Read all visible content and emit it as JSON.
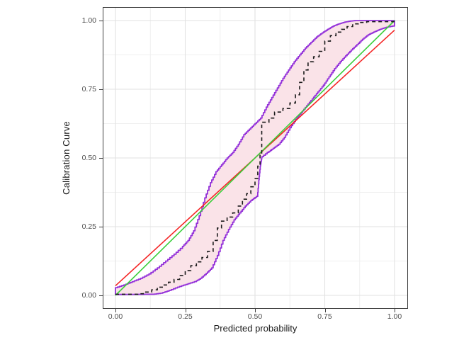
{
  "figure": {
    "background_color": "#ffffff",
    "panel_border_color": "#404040",
    "grid_major_color": "#e2e2e2",
    "grid_minor_color": "#efefef"
  },
  "chart_data": {
    "type": "line",
    "title": "",
    "xlabel": "Predicted probability",
    "ylabel": "Calibration Curve",
    "xlim": [
      0,
      1
    ],
    "ylim": [
      0,
      1
    ],
    "grid": "on",
    "legend": "none",
    "x_ticks": {
      "values": [
        0,
        0.25,
        0.5,
        0.75,
        1
      ],
      "labels": [
        "0.00",
        "0.25",
        "0.50",
        "0.75",
        "1.00"
      ]
    },
    "y_ticks": {
      "values": [
        0,
        0.25,
        0.5,
        0.75,
        1
      ],
      "labels": [
        "0.00",
        "0.25",
        "0.50",
        "0.75",
        "1.00"
      ]
    },
    "minor_ticks": [
      0.125,
      0.375,
      0.625,
      0.875
    ],
    "series": [
      {
        "name": "confidence-band",
        "type": "band",
        "stroke": "#9330d9",
        "fill": "#fae3e8",
        "upper": [
          [
            0,
            0.028
          ],
          [
            0.03,
            0.038
          ],
          [
            0.06,
            0.05
          ],
          [
            0.09,
            0.062
          ],
          [
            0.12,
            0.078
          ],
          [
            0.15,
            0.1
          ],
          [
            0.18,
            0.125
          ],
          [
            0.21,
            0.15
          ],
          [
            0.24,
            0.178
          ],
          [
            0.26,
            0.2
          ],
          [
            0.28,
            0.235
          ],
          [
            0.3,
            0.29
          ],
          [
            0.32,
            0.355
          ],
          [
            0.34,
            0.41
          ],
          [
            0.36,
            0.45
          ],
          [
            0.38,
            0.475
          ],
          [
            0.4,
            0.5
          ],
          [
            0.42,
            0.52
          ],
          [
            0.44,
            0.55
          ],
          [
            0.46,
            0.585
          ],
          [
            0.48,
            0.605
          ],
          [
            0.5,
            0.625
          ],
          [
            0.52,
            0.645
          ],
          [
            0.54,
            0.685
          ],
          [
            0.56,
            0.72
          ],
          [
            0.58,
            0.755
          ],
          [
            0.6,
            0.79
          ],
          [
            0.62,
            0.82
          ],
          [
            0.64,
            0.85
          ],
          [
            0.66,
            0.875
          ],
          [
            0.68,
            0.9
          ],
          [
            0.7,
            0.92
          ],
          [
            0.72,
            0.94
          ],
          [
            0.74,
            0.955
          ],
          [
            0.76,
            0.968
          ],
          [
            0.78,
            0.98
          ],
          [
            0.8,
            0.988
          ],
          [
            0.82,
            0.994
          ],
          [
            0.84,
            0.998
          ],
          [
            0.86,
            1
          ],
          [
            1,
            1
          ]
        ],
        "lower": [
          [
            0,
            0.003
          ],
          [
            0.14,
            0.004
          ],
          [
            0.17,
            0.008
          ],
          [
            0.2,
            0.018
          ],
          [
            0.23,
            0.03
          ],
          [
            0.26,
            0.04
          ],
          [
            0.29,
            0.05
          ],
          [
            0.31,
            0.062
          ],
          [
            0.33,
            0.08
          ],
          [
            0.35,
            0.1
          ],
          [
            0.37,
            0.145
          ],
          [
            0.39,
            0.2
          ],
          [
            0.41,
            0.24
          ],
          [
            0.43,
            0.275
          ],
          [
            0.45,
            0.3
          ],
          [
            0.47,
            0.325
          ],
          [
            0.49,
            0.345
          ],
          [
            0.51,
            0.36
          ],
          [
            0.515,
            0.42
          ],
          [
            0.52,
            0.47
          ],
          [
            0.525,
            0.5
          ],
          [
            0.55,
            0.52
          ],
          [
            0.57,
            0.535
          ],
          [
            0.59,
            0.55
          ],
          [
            0.61,
            0.575
          ],
          [
            0.63,
            0.61
          ],
          [
            0.65,
            0.64
          ],
          [
            0.67,
            0.665
          ],
          [
            0.69,
            0.69
          ],
          [
            0.71,
            0.715
          ],
          [
            0.73,
            0.74
          ],
          [
            0.75,
            0.765
          ],
          [
            0.77,
            0.795
          ],
          [
            0.79,
            0.825
          ],
          [
            0.81,
            0.85
          ],
          [
            0.83,
            0.872
          ],
          [
            0.85,
            0.893
          ],
          [
            0.87,
            0.912
          ],
          [
            0.89,
            0.932
          ],
          [
            0.91,
            0.948
          ],
          [
            0.93,
            0.958
          ],
          [
            0.95,
            0.967
          ],
          [
            0.97,
            0.974
          ],
          [
            1,
            0.98
          ]
        ]
      },
      {
        "name": "linear-calibration-line",
        "type": "line",
        "stroke": "#f42525",
        "points": [
          [
            0,
            0.035
          ],
          [
            1,
            0.965
          ]
        ]
      },
      {
        "name": "ideal-diagonal-line",
        "type": "line",
        "stroke": "#3bcf3b",
        "points": [
          [
            0,
            0
          ],
          [
            1,
            1
          ]
        ]
      },
      {
        "name": "flexible-calibration-curve",
        "type": "step",
        "stroke": "#1a1a1a",
        "dash": "5 4",
        "points": [
          [
            0,
            0.004
          ],
          [
            0.08,
            0.006
          ],
          [
            0.1,
            0.012
          ],
          [
            0.13,
            0.02
          ],
          [
            0.15,
            0.03
          ],
          [
            0.17,
            0.038
          ],
          [
            0.19,
            0.048
          ],
          [
            0.21,
            0.058
          ],
          [
            0.23,
            0.072
          ],
          [
            0.25,
            0.09
          ],
          [
            0.27,
            0.108
          ],
          [
            0.29,
            0.122
          ],
          [
            0.31,
            0.138
          ],
          [
            0.33,
            0.16
          ],
          [
            0.35,
            0.2
          ],
          [
            0.365,
            0.245
          ],
          [
            0.38,
            0.27
          ],
          [
            0.4,
            0.285
          ],
          [
            0.42,
            0.3
          ],
          [
            0.44,
            0.325
          ],
          [
            0.455,
            0.35
          ],
          [
            0.47,
            0.37
          ],
          [
            0.485,
            0.395
          ],
          [
            0.5,
            0.425
          ],
          [
            0.51,
            0.47
          ],
          [
            0.518,
            0.515
          ],
          [
            0.524,
            0.63
          ],
          [
            0.55,
            0.645
          ],
          [
            0.57,
            0.667
          ],
          [
            0.6,
            0.68
          ],
          [
            0.625,
            0.7
          ],
          [
            0.645,
            0.73
          ],
          [
            0.66,
            0.775
          ],
          [
            0.675,
            0.82
          ],
          [
            0.69,
            0.85
          ],
          [
            0.71,
            0.868
          ],
          [
            0.73,
            0.888
          ],
          [
            0.75,
            0.925
          ],
          [
            0.77,
            0.945
          ],
          [
            0.79,
            0.958
          ],
          [
            0.81,
            0.968
          ],
          [
            0.83,
            0.978
          ],
          [
            0.85,
            0.988
          ],
          [
            0.87,
            0.993
          ],
          [
            0.9,
            0.996
          ],
          [
            1,
            0.996
          ]
        ]
      }
    ]
  }
}
